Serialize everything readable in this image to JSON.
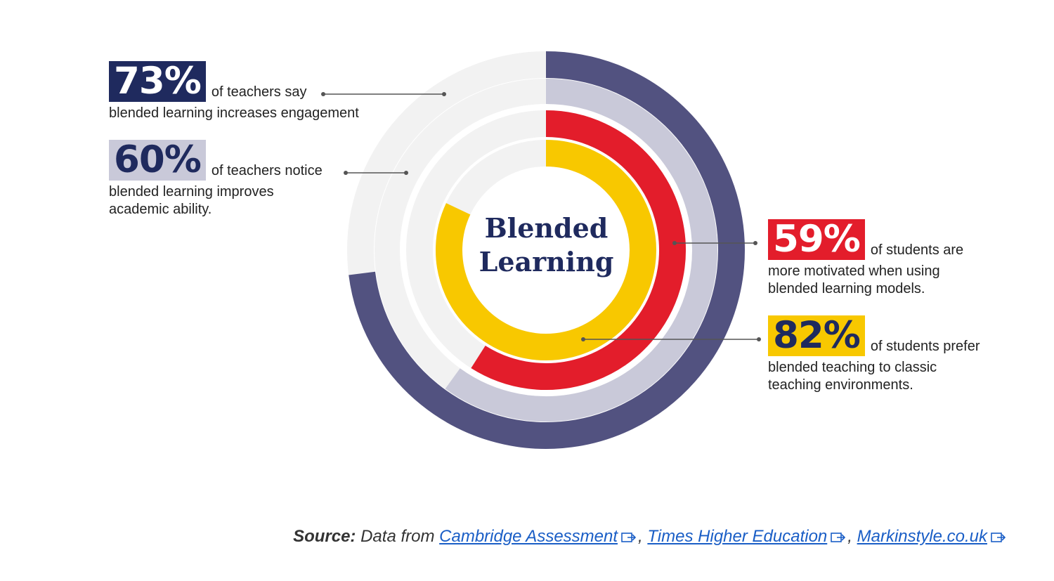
{
  "chart_data": {
    "type": "radial-bar",
    "center_label": [
      "Blended",
      "Learning"
    ],
    "series": [
      {
        "value_label": "73%",
        "value": 73,
        "color": "#525280",
        "track": "#f2f2f2",
        "text_lead": "of teachers say",
        "text_body": "blended learning increases engagement"
      },
      {
        "value_label": "60%",
        "value": 60,
        "color": "#c9c9d9",
        "track": "#f2f2f2",
        "text_lead": "of teachers notice",
        "text_body": "blended learning improves academic ability."
      },
      {
        "value_label": "59%",
        "value": 59,
        "color": "#e31d2b",
        "track": "#f2f2f2",
        "text_lead": "of students are",
        "text_body": "more motivated when using blended learning models."
      },
      {
        "value_label": "82%",
        "value": 82,
        "color": "#f8c800",
        "track": "#f2f2f2",
        "text_lead": "of students prefer",
        "text_body": "blended teaching to classic teaching environments."
      }
    ]
  },
  "source": {
    "label": "Source:",
    "prefix": "Data from",
    "links": [
      "Cambridge Assessment",
      "Times Higher Education",
      "Markinstyle.co.uk"
    ],
    "separator": ","
  }
}
